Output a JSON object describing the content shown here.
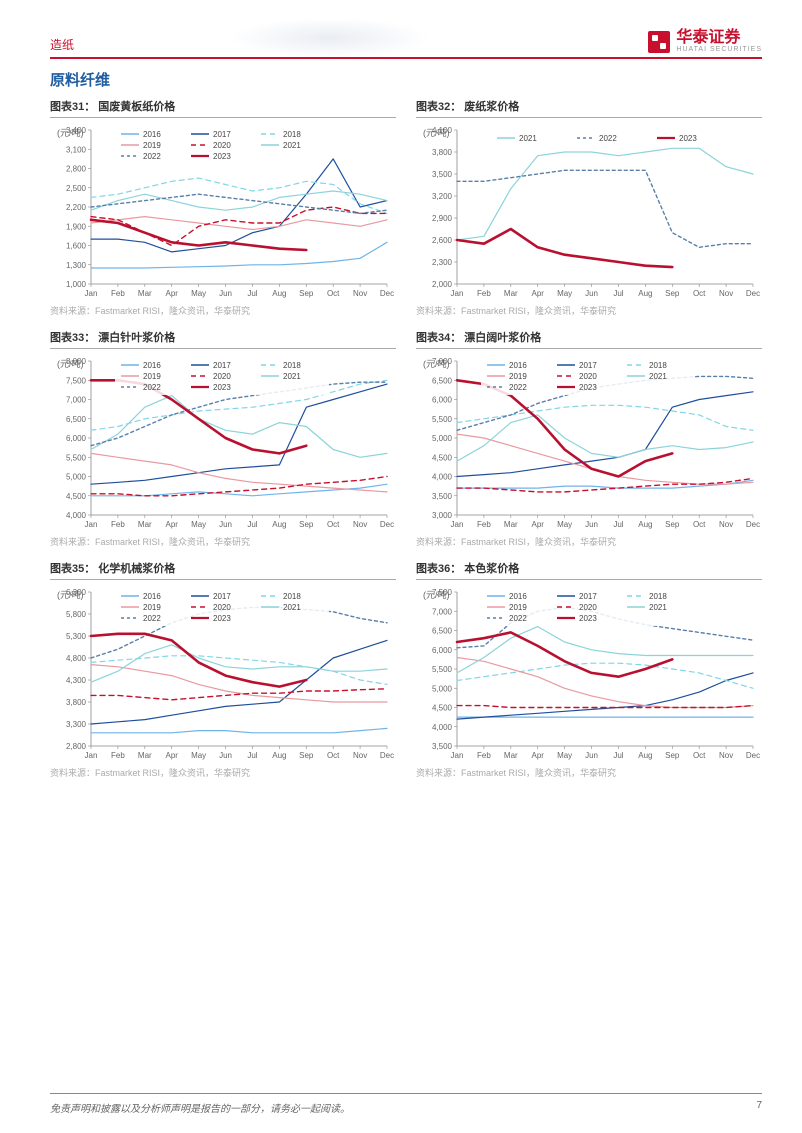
{
  "header": {
    "category": "造纸",
    "logo_main": "华泰证券",
    "logo_sub": "HUATAI SECURITIES"
  },
  "section_title": "原料纤维",
  "months": [
    "Jan",
    "Feb",
    "Mar",
    "Apr",
    "May",
    "Jun",
    "Jul",
    "Aug",
    "Sep",
    "Oct",
    "Nov",
    "Dec"
  ],
  "source_text": "资料来源：Fastmarket RISI，隆众资讯，华泰研究",
  "footer": {
    "disclaimer": "免责声明和披露以及分析师声明是报告的一部分，请务必一起阅读。",
    "page": "7"
  },
  "legend_styles": {
    "2016": {
      "color": "#6fb4e8",
      "dash": "0",
      "weight": 1.2
    },
    "2017": {
      "color": "#1f4e9c",
      "dash": "0",
      "weight": 1.2
    },
    "2018": {
      "color": "#7fd6e8",
      "dash": "5,4",
      "weight": 1.2
    },
    "2019": {
      "color": "#e89aa0",
      "dash": "0",
      "weight": 1.2
    },
    "2020": {
      "color": "#c8102e",
      "dash": "5,4",
      "weight": 1.4
    },
    "2021": {
      "color": "#8bd4d9",
      "dash": "0",
      "weight": 1.2
    },
    "2022": {
      "color": "#5a7fa8",
      "dash": "3,3",
      "weight": 1.4
    },
    "2023": {
      "color": "#b8102e",
      "dash": "0",
      "weight": 2.6
    }
  },
  "charts": [
    {
      "id": 31,
      "title": "图表31： 国废黄板纸价格",
      "ylabel": "(元/吨)",
      "ymin": 1000,
      "ymax": 3400,
      "ystep": 300,
      "legend_years": [
        "2016",
        "2017",
        "2018",
        "2019",
        "2020",
        "2021",
        "2022",
        "2023"
      ],
      "legend_layout": "grid3",
      "series": {
        "2016": [
          1250,
          1250,
          1250,
          1260,
          1270,
          1280,
          1300,
          1300,
          1320,
          1350,
          1400,
          1650
        ],
        "2017": [
          1700,
          1700,
          1650,
          1500,
          1550,
          1600,
          1800,
          1900,
          2400,
          2950,
          2200,
          2300
        ],
        "2018": [
          2350,
          2400,
          2500,
          2600,
          2650,
          2550,
          2450,
          2500,
          2600,
          2550,
          2250,
          2100
        ],
        "2019": [
          1950,
          2000,
          2050,
          2000,
          1950,
          1900,
          1850,
          1900,
          2000,
          1950,
          1900,
          2000
        ],
        "2020": [
          2050,
          2000,
          1800,
          1600,
          1900,
          2000,
          1950,
          1950,
          2150,
          2200,
          2100,
          2100
        ],
        "2021": [
          2150,
          2300,
          2400,
          2300,
          2200,
          2150,
          2200,
          2350,
          2400,
          2450,
          2400,
          2300
        ],
        "2022": [
          2200,
          2250,
          2300,
          2350,
          2400,
          2350,
          2300,
          2250,
          2200,
          2150,
          2100,
          2150
        ],
        "2023": [
          2000,
          1950,
          1800,
          1650,
          1600,
          1650,
          1600,
          1550,
          1530
        ]
      }
    },
    {
      "id": 32,
      "title": "图表32： 废纸浆价格",
      "ylabel": "(元/吨)",
      "ymin": 2000,
      "ymax": 4100,
      "ystep": 300,
      "legend_years": [
        "2021",
        "2022",
        "2023"
      ],
      "legend_layout": "row",
      "series": {
        "2021": [
          2600,
          2650,
          3300,
          3750,
          3800,
          3800,
          3750,
          3800,
          3850,
          3850,
          3600,
          3500
        ],
        "2022": [
          3400,
          3400,
          3450,
          3500,
          3550,
          3550,
          3550,
          3550,
          2700,
          2500,
          2550,
          2550
        ],
        "2023": [
          2600,
          2550,
          2750,
          2500,
          2400,
          2350,
          2300,
          2250,
          2230
        ]
      }
    },
    {
      "id": 33,
      "title": "图表33： 漂白针叶浆价格",
      "ylabel": "(元/吨)",
      "ymin": 4000,
      "ymax": 8000,
      "ystep": 500,
      "legend_years": [
        "2016",
        "2017",
        "2018",
        "2019",
        "2020",
        "2021",
        "2022",
        "2023"
      ],
      "legend_layout": "grid3",
      "series": {
        "2016": [
          4500,
          4500,
          4500,
          4550,
          4600,
          4550,
          4500,
          4550,
          4600,
          4650,
          4700,
          4800
        ],
        "2017": [
          4800,
          4850,
          4900,
          5000,
          5100,
          5200,
          5250,
          5300,
          6800,
          7000,
          7200,
          7400
        ],
        "2018": [
          6200,
          6300,
          6500,
          6600,
          6700,
          6750,
          6800,
          6900,
          7000,
          7200,
          7400,
          7500
        ],
        "2019": [
          5600,
          5500,
          5400,
          5300,
          5100,
          4950,
          4850,
          4800,
          4750,
          4700,
          4650,
          4600
        ],
        "2020": [
          4550,
          4550,
          4500,
          4500,
          4550,
          4600,
          4650,
          4700,
          4800,
          4850,
          4900,
          5000
        ],
        "2021": [
          5700,
          6100,
          6800,
          7100,
          6500,
          6200,
          6100,
          6400,
          6300,
          5700,
          5500,
          5600
        ],
        "2022": [
          5800,
          6000,
          6300,
          6600,
          6800,
          7000,
          7100,
          7200,
          7300,
          7400,
          7450,
          7450
        ],
        "2023": [
          7500,
          7500,
          7400,
          7000,
          6500,
          6000,
          5700,
          5600,
          5800
        ]
      }
    },
    {
      "id": 34,
      "title": "图表34： 漂白阔叶浆价格",
      "ylabel": "(元/吨)",
      "ymin": 3000,
      "ymax": 7000,
      "ystep": 500,
      "legend_years": [
        "2016",
        "2017",
        "2018",
        "2019",
        "2020",
        "2021",
        "2022",
        "2023"
      ],
      "legend_layout": "grid3",
      "series": {
        "2016": [
          3700,
          3700,
          3700,
          3700,
          3750,
          3750,
          3700,
          3700,
          3700,
          3750,
          3800,
          3900
        ],
        "2017": [
          4000,
          4050,
          4100,
          4200,
          4300,
          4400,
          4500,
          4700,
          5800,
          6000,
          6100,
          6200
        ],
        "2018": [
          5400,
          5500,
          5600,
          5700,
          5800,
          5850,
          5850,
          5800,
          5700,
          5600,
          5300,
          5200
        ],
        "2019": [
          5100,
          5000,
          4800,
          4600,
          4400,
          4200,
          4000,
          3900,
          3850,
          3800,
          3800,
          3850
        ],
        "2020": [
          3700,
          3700,
          3650,
          3600,
          3600,
          3650,
          3700,
          3750,
          3800,
          3800,
          3850,
          3950
        ],
        "2021": [
          4400,
          4800,
          5400,
          5600,
          5000,
          4600,
          4500,
          4700,
          4800,
          4700,
          4750,
          4900
        ],
        "2022": [
          5200,
          5400,
          5600,
          5900,
          6100,
          6300,
          6400,
          6500,
          6550,
          6600,
          6600,
          6550
        ],
        "2023": [
          6500,
          6400,
          6100,
          5500,
          4700,
          4200,
          4000,
          4400,
          4600
        ]
      }
    },
    {
      "id": 35,
      "title": "图表35： 化学机械浆价格",
      "ylabel": "(元/吨)",
      "ymin": 2800,
      "ymax": 6300,
      "ystep": 500,
      "legend_years": [
        "2016",
        "2017",
        "2018",
        "2019",
        "2020",
        "2021",
        "2022",
        "2023"
      ],
      "legend_layout": "grid3",
      "series": {
        "2016": [
          3100,
          3100,
          3100,
          3100,
          3150,
          3150,
          3100,
          3100,
          3100,
          3100,
          3150,
          3200
        ],
        "2017": [
          3300,
          3350,
          3400,
          3500,
          3600,
          3700,
          3750,
          3800,
          4300,
          4800,
          5000,
          5200
        ],
        "2018": [
          4700,
          4750,
          4800,
          4850,
          4850,
          4800,
          4750,
          4700,
          4600,
          4500,
          4300,
          4200
        ],
        "2019": [
          4650,
          4600,
          4500,
          4400,
          4200,
          4050,
          3950,
          3900,
          3850,
          3800,
          3800,
          3800
        ],
        "2020": [
          3950,
          3950,
          3900,
          3850,
          3900,
          3950,
          4000,
          4000,
          4050,
          4050,
          4080,
          4100
        ],
        "2021": [
          4250,
          4500,
          4900,
          5100,
          4800,
          4600,
          4550,
          4600,
          4600,
          4500,
          4500,
          4550
        ],
        "2022": [
          4800,
          5000,
          5300,
          5600,
          5800,
          5900,
          5950,
          5950,
          5900,
          5850,
          5700,
          5600
        ],
        "2023": [
          5300,
          5350,
          5350,
          5200,
          4700,
          4400,
          4250,
          4150,
          4300
        ]
      }
    },
    {
      "id": 36,
      "title": "图表36： 本色浆价格",
      "ylabel": "(元/吨)",
      "ymin": 3500,
      "ymax": 7500,
      "ystep": 500,
      "legend_years": [
        "2016",
        "2017",
        "2018",
        "2019",
        "2020",
        "2021",
        "2022",
        "2023"
      ],
      "legend_layout": "grid3",
      "series": {
        "2016": [
          4250,
          4250,
          4250,
          4250,
          4250,
          4250,
          4250,
          4250,
          4250,
          4250,
          4250,
          4250
        ],
        "2017": [
          4200,
          4250,
          4300,
          4350,
          4400,
          4450,
          4500,
          4550,
          4700,
          4900,
          5200,
          5400
        ],
        "2018": [
          5200,
          5300,
          5400,
          5500,
          5600,
          5650,
          5650,
          5600,
          5500,
          5400,
          5200,
          5000
        ],
        "2019": [
          5800,
          5700,
          5500,
          5300,
          5000,
          4800,
          4650,
          4550,
          4500,
          4500,
          4500,
          4550
        ],
        "2020": [
          4550,
          4550,
          4500,
          4500,
          4500,
          4500,
          4500,
          4500,
          4500,
          4500,
          4500,
          4550
        ],
        "2021": [
          5400,
          5800,
          6300,
          6600,
          6200,
          6000,
          5900,
          5850,
          5850,
          5850,
          5850,
          5850
        ],
        "2022": [
          6050,
          6100,
          6700,
          7000,
          7100,
          7000,
          6800,
          6650,
          6550,
          6450,
          6350,
          6250
        ],
        "2023": [
          6200,
          6300,
          6450,
          6100,
          5700,
          5400,
          5300,
          5500,
          5750
        ]
      }
    }
  ]
}
